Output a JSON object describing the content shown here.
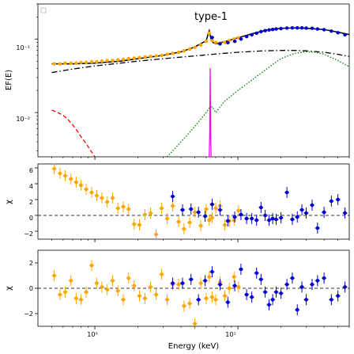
{
  "chart_data": [
    {
      "type": "line",
      "title": "type-1",
      "xscale": "log",
      "yscale": "log",
      "xlim": [
        0.4,
        60
      ],
      "ylim": [
        0.0025,
        0.3
      ],
      "ylabel": "EF(E)",
      "ytick_labels": [
        "10⁻²",
        "10⁻¹"
      ],
      "yticks": [
        0.01,
        0.1
      ],
      "legend": "top-left (empty)",
      "colors": {
        "total": "#000000",
        "data_orange": "#ffa500",
        "data_blue": "#0000cd",
        "dashdot": "#000000",
        "red": "#ff0000",
        "green": "#008000",
        "magenta": "#ff00ff",
        "model_smooth": "#000000"
      },
      "series": [
        {
          "style": "solid",
          "color": "#000000",
          "x": [
            0.5,
            0.7,
            1,
            1.5,
            2,
            3,
            4,
            5,
            6,
            6.3,
            6.5,
            6.7,
            7,
            8,
            10,
            13,
            16,
            20,
            25,
            30,
            40,
            50,
            60
          ],
          "y": [
            0.046,
            0.046,
            0.047,
            0.05,
            0.054,
            0.06,
            0.067,
            0.078,
            0.095,
            0.13,
            0.098,
            0.09,
            0.086,
            0.092,
            0.104,
            0.12,
            0.133,
            0.14,
            0.142,
            0.14,
            0.135,
            0.124,
            0.115
          ]
        },
        {
          "style": "dashdot",
          "color": "#000000",
          "x": [
            0.5,
            0.7,
            1,
            1.5,
            2,
            3,
            5,
            8,
            10,
            15,
            20,
            25,
            30,
            40,
            50,
            60
          ],
          "y": [
            0.035,
            0.039,
            0.043,
            0.047,
            0.05,
            0.054,
            0.059,
            0.064,
            0.066,
            0.069,
            0.07,
            0.07,
            0.069,
            0.066,
            0.062,
            0.058
          ]
        },
        {
          "style": "dashed",
          "color": "#ff0000",
          "x": [
            0.5,
            0.55,
            0.6,
            0.65,
            0.7,
            0.75,
            0.8,
            0.85,
            0.9,
            0.95,
            1.0
          ],
          "y": [
            0.0108,
            0.01,
            0.0092,
            0.008,
            0.0068,
            0.0057,
            0.0047,
            0.004,
            0.0034,
            0.0029,
            0.0025
          ]
        },
        {
          "style": "dotted",
          "color": "#008000",
          "x": [
            3.2,
            4,
            5,
            6,
            6.3,
            6.6,
            7,
            8,
            10,
            12,
            15,
            18,
            20,
            25,
            30,
            35,
            40,
            50,
            60
          ],
          "y": [
            0.0025,
            0.004,
            0.0065,
            0.01,
            0.0115,
            0.012,
            0.01,
            0.014,
            0.02,
            0.026,
            0.036,
            0.047,
            0.054,
            0.064,
            0.067,
            0.066,
            0.062,
            0.051,
            0.042
          ]
        },
        {
          "style": "line",
          "color": "#ff00ff",
          "x": [
            6.3,
            6.35,
            6.4,
            6.45,
            6.5
          ],
          "y": [
            0.0025,
            0.005,
            0.04,
            0.005,
            0.0025
          ]
        }
      ],
      "data_orange": {
        "x": [
          0.52,
          0.57,
          0.62,
          0.68,
          0.74,
          0.8,
          0.87,
          0.95,
          1.03,
          1.12,
          1.22,
          1.33,
          1.45,
          1.58,
          1.72,
          1.88,
          2.05,
          2.24,
          2.45,
          2.68,
          2.93,
          3.2,
          3.5,
          3.85,
          4.2,
          4.6,
          5.0,
          5.5,
          6.0,
          6.3,
          6.6,
          7.0,
          7.5,
          8.1,
          8.7,
          9.4,
          10.1
        ],
        "y": [
          0.046,
          0.046,
          0.047,
          0.047,
          0.047,
          0.048,
          0.048,
          0.049,
          0.049,
          0.05,
          0.051,
          0.051,
          0.052,
          0.053,
          0.054,
          0.055,
          0.056,
          0.057,
          0.058,
          0.059,
          0.06,
          0.062,
          0.064,
          0.066,
          0.069,
          0.073,
          0.077,
          0.083,
          0.093,
          0.12,
          0.096,
          0.09,
          0.088,
          0.09,
          0.095,
          0.1,
          0.104
        ]
      },
      "data_blue": {
        "x": [
          6.6,
          7.5,
          8.5,
          9.5,
          10.5,
          11.5,
          12.5,
          13.5,
          14.5,
          15.5,
          16.5,
          17.5,
          18.5,
          20,
          22,
          24,
          26,
          28,
          30,
          33,
          36,
          40,
          45,
          50,
          56
        ],
        "y": [
          0.105,
          0.086,
          0.089,
          0.093,
          0.1,
          0.108,
          0.114,
          0.12,
          0.126,
          0.13,
          0.133,
          0.135,
          0.137,
          0.139,
          0.141,
          0.142,
          0.142,
          0.142,
          0.141,
          0.14,
          0.137,
          0.134,
          0.128,
          0.122,
          0.114
        ]
      }
    },
    {
      "type": "scatter",
      "ylabel": "χ",
      "ylim": [
        -3,
        6.5
      ],
      "yticks": [
        -2,
        0,
        2,
        4,
        6
      ],
      "ytick_labels": [
        "−2",
        "0",
        "2",
        "4",
        "6"
      ],
      "reference_line": 0,
      "orange": {
        "x": [
          0.52,
          0.57,
          0.62,
          0.68,
          0.74,
          0.8,
          0.87,
          0.95,
          1.03,
          1.12,
          1.22,
          1.33,
          1.45,
          1.58,
          1.72,
          1.88,
          2.05,
          2.24,
          2.45,
          2.68,
          2.93,
          3.2,
          3.5,
          3.85,
          4.2,
          4.6,
          5.0,
          5.5,
          6.0,
          6.3,
          6.6,
          7.0,
          7.5,
          8.1,
          8.7,
          9.4,
          10.1
        ],
        "y": [
          5.9,
          5.3,
          5.0,
          4.6,
          4.2,
          3.8,
          3.3,
          2.9,
          2.5,
          2.2,
          1.7,
          2.2,
          0.9,
          1.1,
          0.8,
          -1.1,
          -1.2,
          0.1,
          0.3,
          -2.4,
          0.9,
          -0.4,
          1.2,
          -0.8,
          -1.7,
          -0.9,
          0.4,
          -1.3,
          0.8,
          -0.6,
          -0.3,
          0.9,
          1.2,
          -1.2,
          -0.7,
          -0.6,
          0.6
        ]
      },
      "blue": {
        "x": [
          3.5,
          4.1,
          4.7,
          5.3,
          5.9,
          6.6,
          7.5,
          8.5,
          9.5,
          10.5,
          11.5,
          12.5,
          13.5,
          14.5,
          15.5,
          16.5,
          17.5,
          18.5,
          20,
          22,
          24,
          26,
          28,
          30,
          33,
          36,
          40,
          45,
          50,
          56
        ],
        "y": [
          2.4,
          0.7,
          0.8,
          0.4,
          -0.1,
          1.4,
          0.7,
          -0.7,
          -0.2,
          0.1,
          -0.4,
          -0.4,
          -0.6,
          1.0,
          0.0,
          -0.6,
          -0.4,
          -0.5,
          -0.3,
          2.9,
          -0.5,
          -0.2,
          0.7,
          0.3,
          1.3,
          -1.6,
          0.4,
          1.8,
          2.0,
          0.3
        ]
      }
    },
    {
      "type": "scatter",
      "ylabel": "χ",
      "xlabel": "Energy (keV)",
      "xscale": "log",
      "xlim": [
        0.4,
        60
      ],
      "xtick_labels": [
        "10⁰",
        "10¹"
      ],
      "xticks": [
        1,
        10
      ],
      "ylim": [
        -3,
        3
      ],
      "yticks": [
        -2,
        0,
        2
      ],
      "ytick_labels": [
        "−2",
        "0",
        "2"
      ],
      "reference_line": 0,
      "orange": {
        "x": [
          0.52,
          0.57,
          0.62,
          0.68,
          0.74,
          0.8,
          0.87,
          0.95,
          1.03,
          1.12,
          1.22,
          1.33,
          1.45,
          1.58,
          1.72,
          1.88,
          2.05,
          2.24,
          2.45,
          2.68,
          2.93,
          3.2,
          3.5,
          3.85,
          4.2,
          4.6,
          5.0,
          5.5,
          6.0,
          6.3,
          6.6,
          7.0,
          7.5,
          8.1,
          8.7,
          9.4,
          10.1
        ],
        "y": [
          1.0,
          -0.5,
          -0.3,
          0.6,
          -0.8,
          -0.9,
          -0.3,
          1.8,
          0.4,
          0.1,
          -0.1,
          0.6,
          -0.2,
          -0.9,
          0.8,
          0.2,
          -0.6,
          -0.8,
          0.1,
          -0.5,
          1.1,
          -0.9,
          0.3,
          0.3,
          -1.4,
          -1.2,
          -2.8,
          0.4,
          -0.8,
          0.9,
          -0.7,
          -0.9,
          0.5,
          -0.6,
          0.0,
          0.9,
          0.1
        ]
      },
      "blue": {
        "x": [
          3.5,
          4.1,
          4.7,
          5.3,
          5.9,
          6.6,
          7.5,
          8.5,
          9.5,
          10.5,
          11.5,
          12.5,
          13.5,
          14.5,
          15.5,
          16.5,
          17.5,
          18.5,
          20,
          22,
          24,
          26,
          28,
          30,
          33,
          36,
          40,
          45,
          50,
          56
        ],
        "y": [
          0.4,
          0.4,
          0.7,
          -0.9,
          0.6,
          1.3,
          0.3,
          -1.1,
          0.2,
          1.5,
          -0.5,
          -0.7,
          1.2,
          0.7,
          -0.3,
          -1.3,
          -0.9,
          -0.3,
          -0.4,
          0.3,
          0.8,
          -1.7,
          0.1,
          -0.9,
          0.3,
          0.6,
          0.8,
          -0.9,
          -0.6,
          0.1
        ]
      }
    }
  ]
}
